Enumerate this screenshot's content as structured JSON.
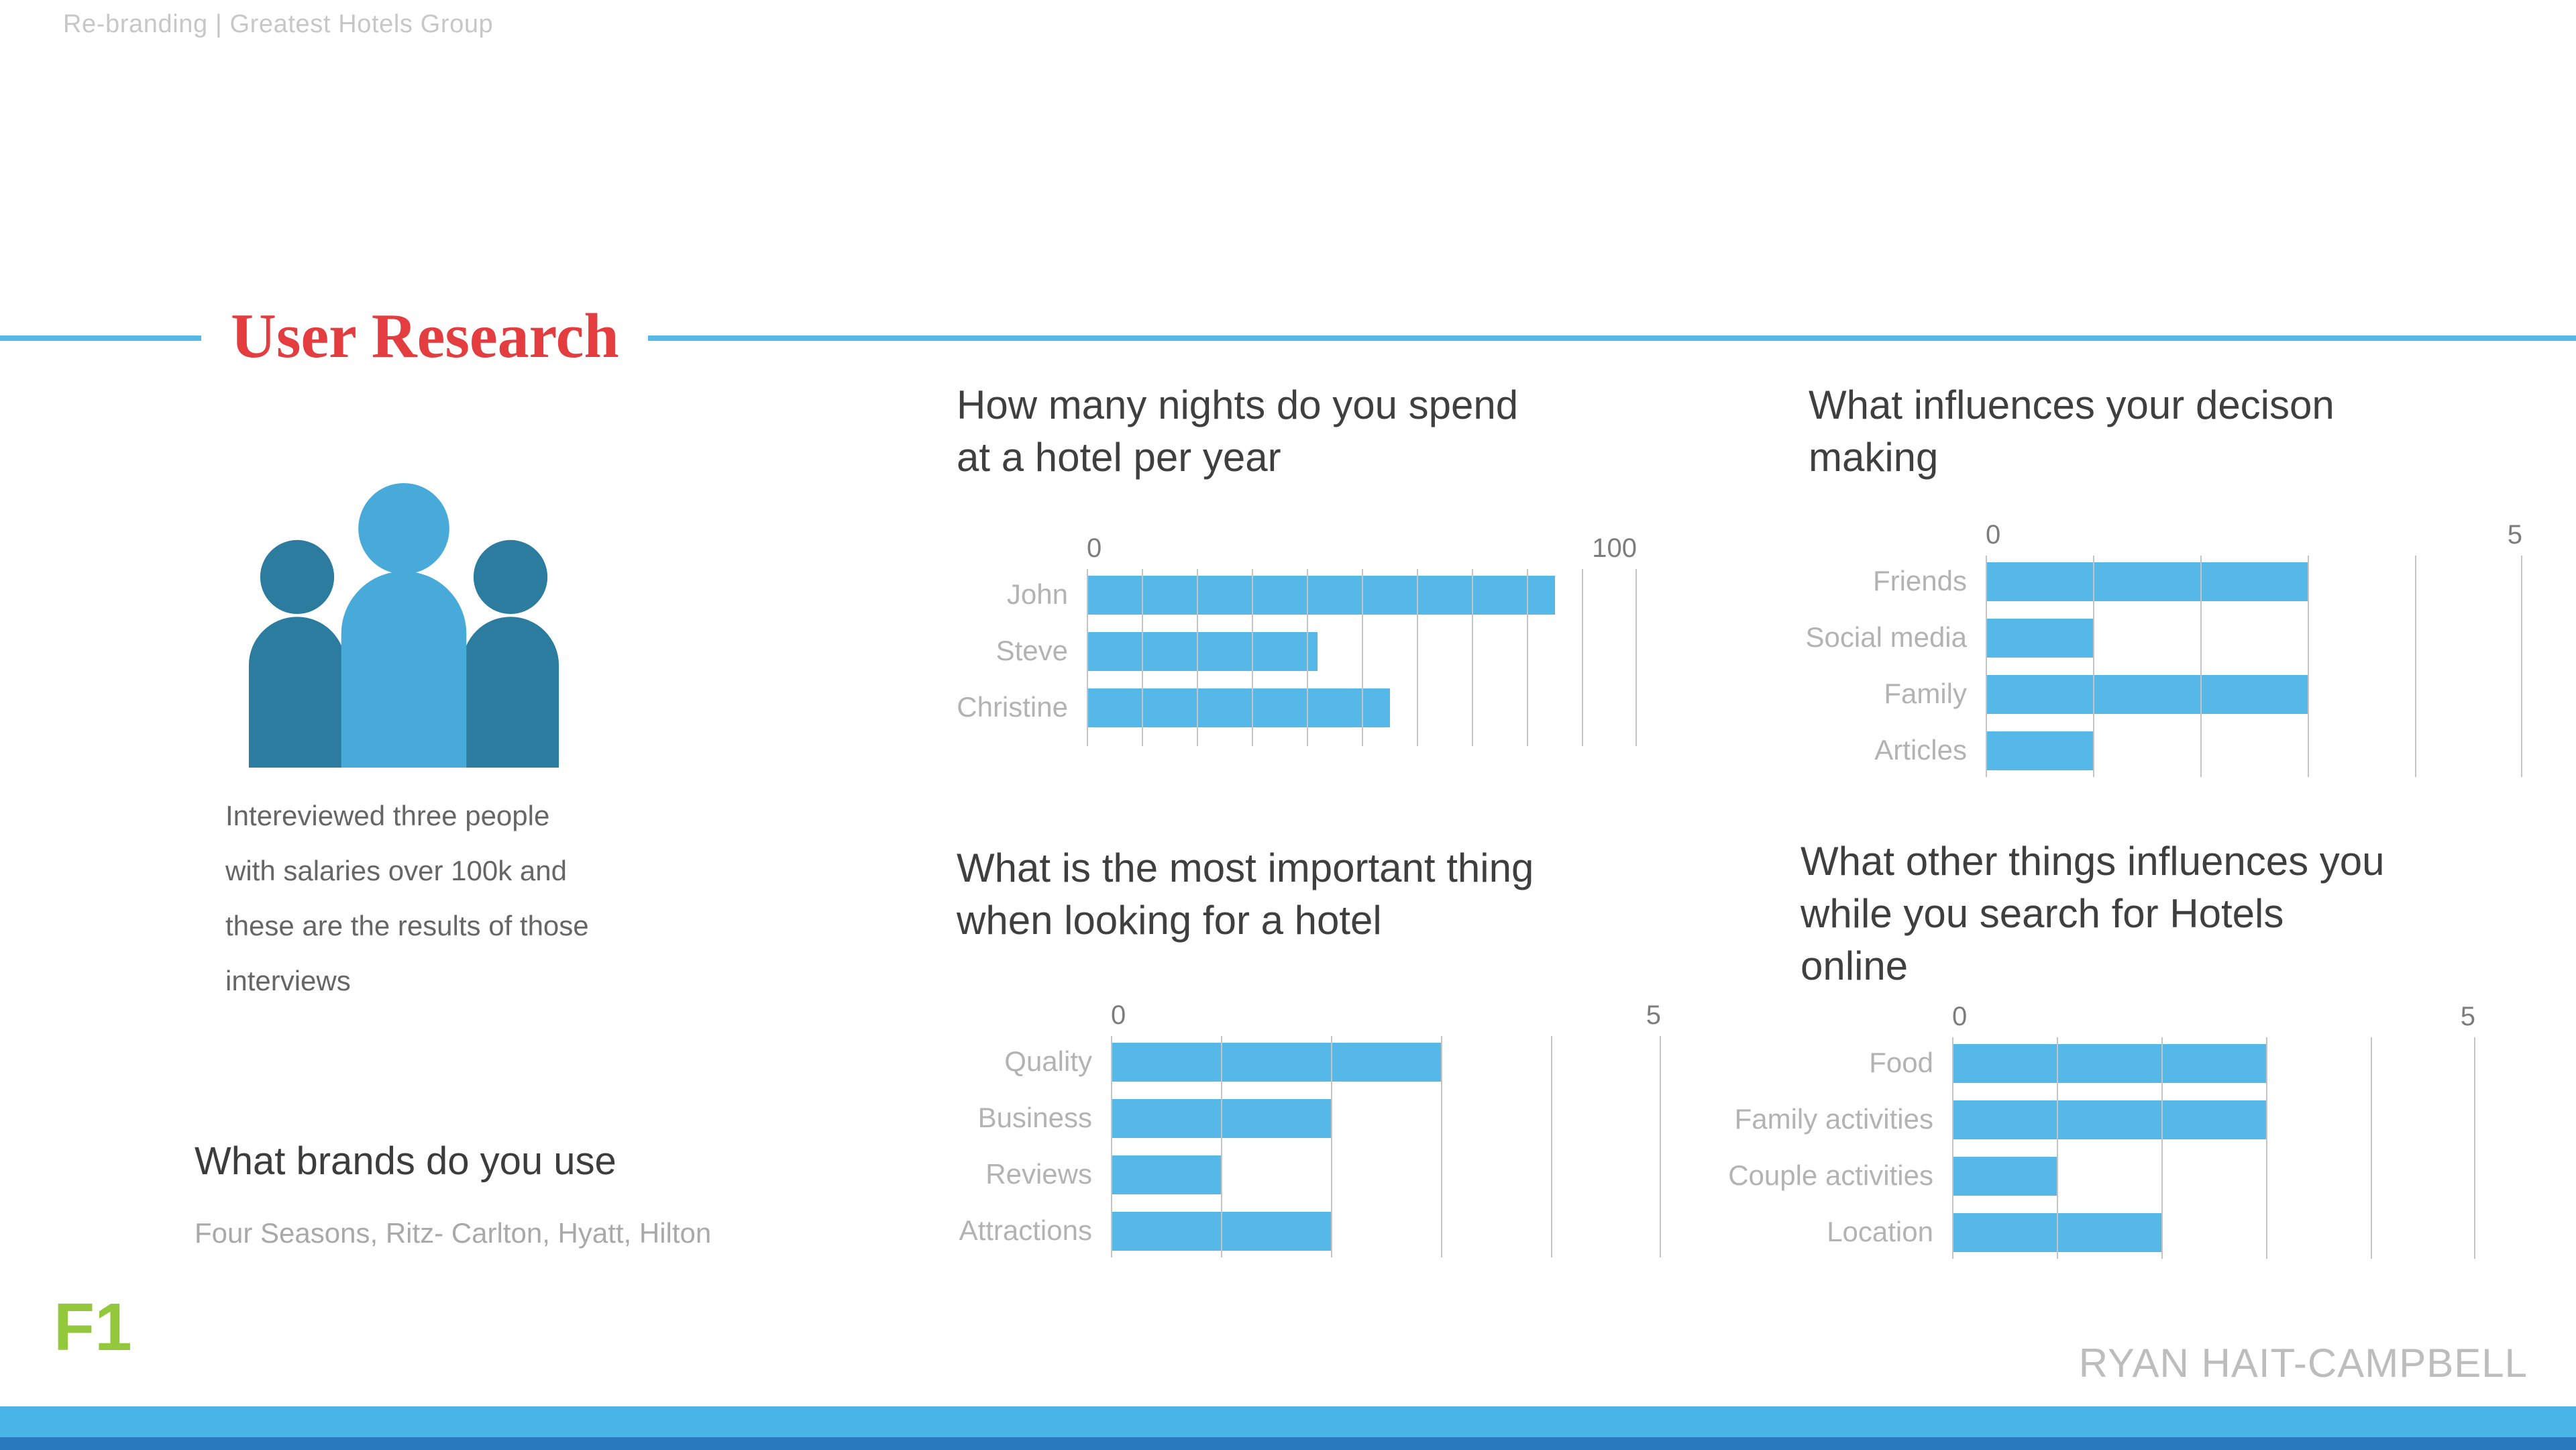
{
  "meta": {
    "breadcrumb": "Re-branding | Greatest Hotels Group"
  },
  "header": {
    "title": "User Research"
  },
  "research": {
    "description": "Intereviewed three people\nwith salaries over 100k and\nthese are the results of those\ninterviews",
    "brands_heading": "What brands do you use",
    "brands": "Four Seasons, Ritz- Carlton, Hyatt, Hilton"
  },
  "footer": {
    "figure_label": "F1",
    "author": "RYAN HAIT-CAMPBELL"
  },
  "colors": {
    "accent_blue": "#55b8e7",
    "bar_blue": "#55b8e7",
    "person_center": "#47aad9",
    "person_side": "#2b7c9e",
    "title_red": "#e43d40",
    "figure_green": "#93c83d",
    "footer_stripe_light": "#49b5e7",
    "footer_stripe_dark": "#2878bd"
  },
  "chart_data": [
    {
      "type": "bar",
      "orientation": "horizontal",
      "title": "How many nights do you spend\nat a hotel per year",
      "categories": [
        "John",
        "Steve",
        "Christine"
      ],
      "values": [
        85,
        42,
        55
      ],
      "xlim": [
        0,
        100
      ],
      "gridlines": 10,
      "legend": false,
      "grid": true
    },
    {
      "type": "bar",
      "orientation": "horizontal",
      "title": "What influences your decison\nmaking",
      "categories": [
        "Friends",
        "Social media",
        "Family",
        "Articles"
      ],
      "values": [
        3,
        1,
        3,
        1
      ],
      "xlim": [
        0,
        5
      ],
      "gridlines": 5,
      "legend": false,
      "grid": true
    },
    {
      "type": "bar",
      "orientation": "horizontal",
      "title": "What is the most important thing\nwhen looking for a hotel",
      "categories": [
        "Quality",
        "Business",
        "Reviews",
        "Attractions"
      ],
      "values": [
        3,
        2,
        1,
        2
      ],
      "xlim": [
        0,
        5
      ],
      "gridlines": 5,
      "legend": false,
      "grid": true
    },
    {
      "type": "bar",
      "orientation": "horizontal",
      "title": "What other things influences you\nwhile you search for Hotels\nonline",
      "categories": [
        "Food",
        "Family activities",
        "Couple activities",
        "Location"
      ],
      "values": [
        3,
        3,
        1,
        2
      ],
      "xlim": [
        0,
        5
      ],
      "gridlines": 5,
      "legend": false,
      "grid": true
    }
  ]
}
